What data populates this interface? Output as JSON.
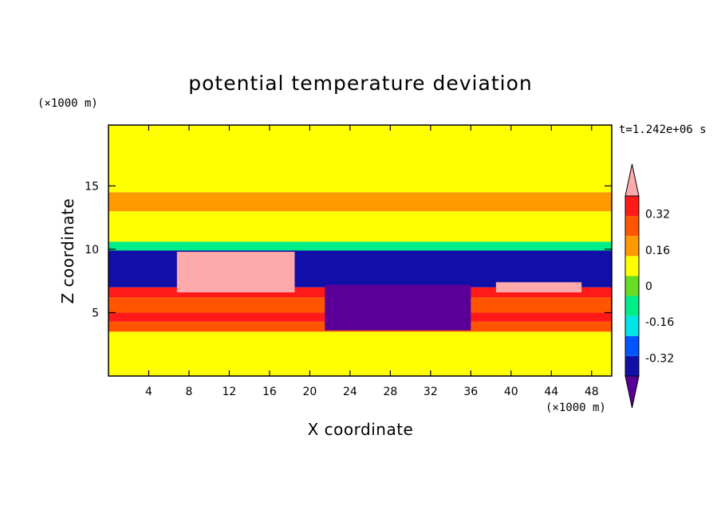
{
  "chart_data": {
    "type": "heatmap",
    "title": "potential temperature deviation",
    "xlabel": "X coordinate",
    "ylabel": "Z coordinate",
    "x_units": "(×1000 m)",
    "y_units": "(×1000 m)",
    "time_label": "t=1.242e+06 s",
    "xlim": [
      0,
      50
    ],
    "ylim": [
      0,
      19.8
    ],
    "x_ticks": [
      4,
      8,
      12,
      16,
      20,
      24,
      28,
      32,
      36,
      40,
      44,
      48
    ],
    "x_tick_labels": [
      "4",
      "8",
      "12",
      "16",
      "20",
      "24",
      "28",
      "32",
      "36",
      "40",
      "44",
      "48"
    ],
    "y_ticks": [
      5,
      10,
      15
    ],
    "y_tick_labels": [
      "5",
      "10",
      "15"
    ],
    "colorbar": {
      "levels": [
        -0.4,
        -0.32,
        -0.24,
        -0.16,
        -0.08,
        0,
        0.08,
        0.16,
        0.24,
        0.32,
        0.4
      ],
      "tick_values": [
        -0.32,
        -0.16,
        0,
        0.16,
        0.32
      ],
      "tick_labels": [
        "-0.32",
        "-0.16",
        "0",
        "0.16",
        "0.32"
      ],
      "colors": [
        "#5a0099",
        "#1010a8",
        "#0055ff",
        "#00e5e5",
        "#00ee88",
        "#66dd22",
        "#ffff00",
        "#ff9900",
        "#ff5500",
        "#ff1a1a",
        "#ffaaaa"
      ],
      "extend": "both"
    },
    "regions": [
      {
        "x0": 0,
        "x1": 50,
        "z0": 0,
        "z1": 3.5,
        "value": 0.04
      },
      {
        "x0": 0,
        "x1": 50,
        "z0": 3.5,
        "z1": 4.3,
        "value": 0.2
      },
      {
        "x0": 0,
        "x1": 50,
        "z0": 4.3,
        "z1": 5.0,
        "value": 0.28
      },
      {
        "x0": 0,
        "x1": 50,
        "z0": 5.0,
        "z1": 6.2,
        "value": 0.2
      },
      {
        "x0": 0,
        "x1": 50,
        "z0": 6.2,
        "z1": 7.0,
        "value": 0.28
      },
      {
        "x0": 0,
        "x1": 50,
        "z0": 7.0,
        "z1": 9.9,
        "value": -0.34
      },
      {
        "x0": 0,
        "x1": 50,
        "z0": 9.9,
        "z1": 10.6,
        "value": -0.12
      },
      {
        "x0": 0,
        "x1": 50,
        "z0": 10.6,
        "z1": 13.0,
        "value": 0.04
      },
      {
        "x0": 0,
        "x1": 50,
        "z0": 13.0,
        "z1": 14.5,
        "value": 0.1
      },
      {
        "x0": 0,
        "x1": 50,
        "z0": 14.5,
        "z1": 19.8,
        "value": 0.04
      },
      {
        "x0": 21.5,
        "x1": 36.0,
        "z0": 3.6,
        "z1": 7.2,
        "value": -0.42
      },
      {
        "x0": 6.8,
        "x1": 18.5,
        "z0": 6.6,
        "z1": 9.8,
        "value": 0.44
      },
      {
        "x0": 38.5,
        "x1": 47.0,
        "z0": 6.6,
        "z1": 7.4,
        "value": 0.44
      }
    ]
  }
}
